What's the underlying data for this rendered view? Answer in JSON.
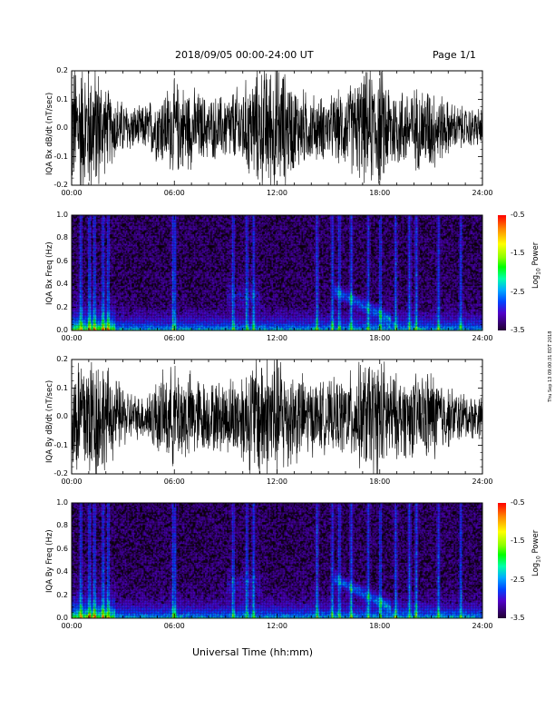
{
  "header": {
    "title": "2018/09/05  00:00-24:00 UT",
    "page": "Page 1/1"
  },
  "x_ticks": [
    "00:00",
    "06:00",
    "12:00",
    "18:00",
    "24:00"
  ],
  "x_axis_title": "Universal Time (hh:mm)",
  "side_stamp": "Thu Sep 13 09:00:31 EDT 2018",
  "colorbar": {
    "ticks": [
      "-0.5",
      "-1.5",
      "-2.5",
      "-3.5"
    ],
    "title": "Log10 Power"
  },
  "panels": {
    "bx_wave": {
      "ylabel": "IQA Bx dB/dt (nT/sec)",
      "yticks": [
        "0.2",
        "0.1",
        "0.0",
        "-0.1",
        "-0.2"
      ]
    },
    "bx_spec": {
      "ylabel": "IQA Bx Freq (Hz)",
      "yticks": [
        "1.0",
        "0.8",
        "0.6",
        "0.4",
        "0.2",
        "0.0"
      ]
    },
    "by_wave": {
      "ylabel": "IQA By dB/dt (nT/sec)",
      "yticks": [
        "0.2",
        "0.1",
        "0.0",
        "-0.1",
        "-0.2"
      ]
    },
    "by_spec": {
      "ylabel": "IQA By Freq (Hz)",
      "yticks": [
        "1.0",
        "0.8",
        "0.6",
        "0.4",
        "0.2",
        "0.0"
      ]
    }
  },
  "chart_data": [
    {
      "type": "line",
      "series": [
        {
          "name": "IQA Bx dB/dt",
          "x_hours": [
            0,
            0.5,
            1,
            1.5,
            2,
            3,
            4,
            5,
            6,
            7,
            8,
            9,
            10,
            11,
            12,
            13,
            14,
            15,
            16,
            17,
            18,
            19,
            20,
            21,
            22,
            23,
            24
          ],
          "amplitude": [
            0.2,
            0.2,
            0.2,
            0.2,
            0.12,
            0.08,
            0.06,
            0.1,
            0.14,
            0.12,
            0.09,
            0.1,
            0.13,
            0.18,
            0.2,
            0.13,
            0.1,
            0.09,
            0.12,
            0.16,
            0.18,
            0.12,
            0.12,
            0.13,
            0.08,
            0.06,
            0.06
          ]
        }
      ],
      "xlabel": "",
      "ylabel": "IQA Bx dB/dt (nT/sec)",
      "xlim": [
        0,
        24
      ],
      "ylim": [
        -0.2,
        0.2
      ]
    },
    {
      "type": "heatmap",
      "ylabel": "IQA Bx Freq (Hz)",
      "xlim": [
        0,
        24
      ],
      "ylim": [
        0,
        1.0
      ],
      "zlim": [
        -3.5,
        -0.5
      ],
      "zlabel": "Log10 Power",
      "bright_columns_hours": [
        0.5,
        1.0,
        1.3,
        1.8,
        2.1,
        5.9,
        6.0,
        9.4,
        10.2,
        10.6,
        14.3,
        15.2,
        15.6,
        16.3,
        17.3,
        18.0,
        18.9,
        19.7,
        20.1,
        21.4,
        22.7
      ],
      "band_segments": [
        {
          "start_h": 15.3,
          "end_h": 18.6,
          "f_start": 0.35,
          "f_end": 0.1
        }
      ]
    },
    {
      "type": "line",
      "series": [
        {
          "name": "IQA By dB/dt",
          "x_hours": [
            0,
            0.5,
            1,
            1.5,
            2,
            3,
            4,
            5,
            6,
            7,
            8,
            9,
            10,
            11,
            12,
            13,
            14,
            15,
            16,
            17,
            18,
            19,
            20,
            21,
            22,
            23,
            24
          ],
          "amplitude": [
            0.2,
            0.2,
            0.2,
            0.2,
            0.15,
            0.09,
            0.06,
            0.11,
            0.15,
            0.13,
            0.1,
            0.11,
            0.14,
            0.2,
            0.2,
            0.14,
            0.11,
            0.1,
            0.12,
            0.16,
            0.18,
            0.12,
            0.12,
            0.14,
            0.09,
            0.07,
            0.06
          ]
        }
      ],
      "xlabel": "",
      "ylabel": "IQA By dB/dt (nT/sec)",
      "xlim": [
        0,
        24
      ],
      "ylim": [
        -0.2,
        0.2
      ]
    },
    {
      "type": "heatmap",
      "ylabel": "IQA By Freq (Hz)",
      "xlim": [
        0,
        24
      ],
      "ylim": [
        0,
        1.0
      ],
      "zlim": [
        -3.5,
        -0.5
      ],
      "zlabel": "Log10 Power",
      "bright_columns_hours": [
        0.5,
        1.0,
        1.3,
        1.8,
        2.1,
        5.9,
        6.0,
        9.4,
        10.2,
        10.6,
        14.3,
        15.2,
        15.6,
        16.3,
        17.3,
        18.0,
        18.9,
        19.7,
        20.1,
        21.4,
        22.7
      ],
      "band_segments": [
        {
          "start_h": 15.3,
          "end_h": 18.6,
          "f_start": 0.35,
          "f_end": 0.1
        }
      ]
    }
  ]
}
